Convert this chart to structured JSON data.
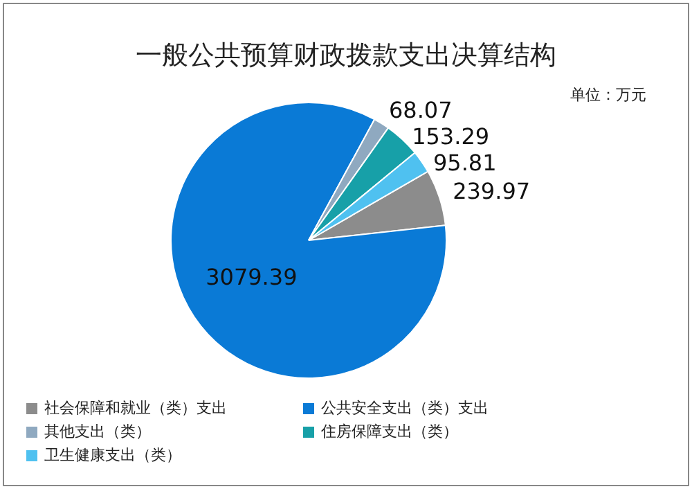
{
  "chart_data": {
    "type": "pie",
    "title": "一般公共预算财政拨款支出决算结构",
    "subtitle": "单位：万元",
    "categories": [
      "社会保障和就业（类）支出",
      "公共安全支出（类）支出",
      "其他支出（类）",
      "住房保障支出（类）",
      "卫生健康支出（类）"
    ],
    "values": [
      239.97,
      3079.39,
      68.07,
      153.29,
      95.81
    ],
    "colors": [
      "#8c8c8c",
      "#0a7ad6",
      "#8fa9c0",
      "#17a0a8",
      "#4fc1f0"
    ],
    "data_labels": true,
    "legend": "bottom left"
  }
}
